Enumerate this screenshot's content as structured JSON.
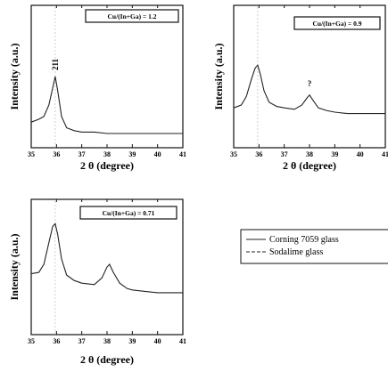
{
  "chart_data": [
    {
      "type": "line",
      "panel": "top-left",
      "condition": "Cu/(In+Ga) = 1.2",
      "xlabel": "2 θ (degree)",
      "ylabel": "Intensity (a.u.)",
      "xlim": [
        35,
        41
      ],
      "xticks": [
        "35",
        "36",
        "37",
        "38",
        "39",
        "40",
        "41"
      ],
      "annotations": [
        {
          "text": "211",
          "x": 35.95
        }
      ],
      "series": [
        {
          "name": "Corning 7059 glass",
          "style": "solid",
          "x": [
            35.0,
            35.3,
            35.5,
            35.7,
            35.85,
            35.95,
            36.05,
            36.2,
            36.4,
            36.7,
            37.0,
            37.5,
            38.0,
            38.5,
            39.0,
            39.5,
            40.0,
            40.5,
            41.0
          ],
          "y": [
            0.18,
            0.2,
            0.22,
            0.3,
            0.42,
            0.5,
            0.4,
            0.22,
            0.14,
            0.12,
            0.11,
            0.11,
            0.1,
            0.1,
            0.1,
            0.1,
            0.1,
            0.1,
            0.1
          ]
        },
        {
          "name": "Sodalime glass",
          "style": "dashed",
          "x": [],
          "y": []
        }
      ]
    },
    {
      "type": "line",
      "panel": "top-right",
      "condition": "Cu/(In+Ga) = 0.9",
      "xlabel": "2 θ (degree)",
      "ylabel": "Intensity (a.u.)",
      "xlim": [
        35,
        41
      ],
      "xticks": [
        "35",
        "36",
        "37",
        "38",
        "39",
        "40",
        "41"
      ],
      "annotations": [
        {
          "text": "?",
          "x": 38.0
        }
      ],
      "series": [
        {
          "name": "Corning 7059 glass",
          "style": "solid",
          "x": [
            35.0,
            35.3,
            35.5,
            35.7,
            35.85,
            35.95,
            36.05,
            36.2,
            36.4,
            36.7,
            37.0,
            37.4,
            37.7,
            37.9,
            38.0,
            38.15,
            38.35,
            38.7,
            39.0,
            39.5,
            40.0,
            40.5,
            41.0
          ],
          "y": [
            0.28,
            0.3,
            0.36,
            0.48,
            0.56,
            0.58,
            0.52,
            0.4,
            0.32,
            0.29,
            0.28,
            0.27,
            0.3,
            0.35,
            0.37,
            0.33,
            0.28,
            0.26,
            0.25,
            0.24,
            0.24,
            0.24,
            0.24
          ]
        },
        {
          "name": "Sodalime glass",
          "style": "dashed",
          "x": [],
          "y": []
        }
      ]
    },
    {
      "type": "line",
      "panel": "bottom-left",
      "condition": "Cu/(In+Ga) = 0.71",
      "xlabel": "2 θ (degree)",
      "ylabel": "Intensity (a.u.)",
      "xlim": [
        35,
        41
      ],
      "xticks": [
        "35",
        "36",
        "37",
        "38",
        "39",
        "40",
        "41"
      ],
      "annotations": [],
      "series": [
        {
          "name": "Corning 7059 glass",
          "style": "solid",
          "x": [
            35.0,
            35.3,
            35.5,
            35.7,
            35.85,
            35.95,
            36.05,
            36.2,
            36.4,
            36.7,
            37.0,
            37.5,
            37.8,
            38.0,
            38.1,
            38.25,
            38.5,
            38.8,
            39.0,
            39.5,
            40.0,
            40.5,
            41.0
          ],
          "y": [
            0.45,
            0.46,
            0.52,
            0.68,
            0.8,
            0.82,
            0.74,
            0.56,
            0.44,
            0.4,
            0.38,
            0.37,
            0.42,
            0.5,
            0.52,
            0.46,
            0.38,
            0.34,
            0.33,
            0.32,
            0.31,
            0.31,
            0.31
          ]
        },
        {
          "name": "Sodalime glass",
          "style": "dashed",
          "x": [],
          "y": []
        }
      ]
    }
  ],
  "legend": {
    "items": [
      {
        "label": "Corning 7059 glass",
        "style": "solid"
      },
      {
        "label": "Sodalime glass",
        "style": "dashed"
      }
    ]
  }
}
